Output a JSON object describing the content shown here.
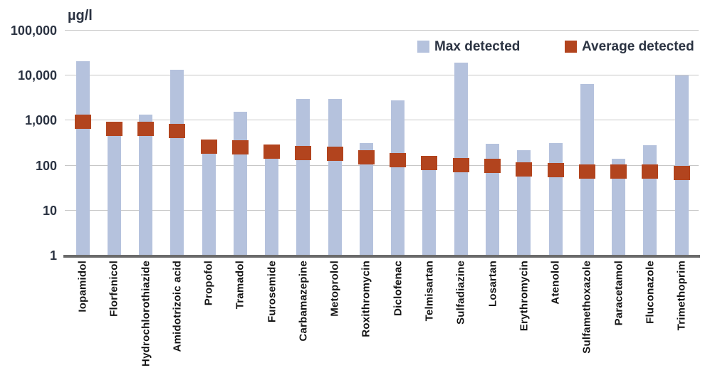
{
  "chart": {
    "unit_label": "µg/l",
    "legend": [
      {
        "label": "Max detected",
        "color": "#b5c2dd"
      },
      {
        "label": "Average detected",
        "color": "#b2441e"
      }
    ],
    "y_axis": {
      "tick_labels": [
        "100,000",
        "10,000",
        "1,000",
        "100",
        "10",
        "1"
      ],
      "tick_values": [
        100000,
        10000,
        1000,
        100,
        10,
        1
      ]
    }
  },
  "chart_data": {
    "type": "bar",
    "scale": "log",
    "unit": "µg/l",
    "title": "",
    "xlabel": "",
    "ylabel": "µg/l",
    "ylim": [
      1,
      100000
    ],
    "grid": true,
    "legend_position": "top-right",
    "categories": [
      "Iopamidol",
      "Florfenicol",
      "Hydrochlorothiazide",
      "Amidotrizoic acid",
      "Propofol",
      "Tramadol",
      "Furosemide",
      "Carbamazepine",
      "Metoprolol",
      "Roxithromycin",
      "Diclofenac",
      "Telmisartan",
      "Sulfadiazine",
      "Losartan",
      "Erythromycin",
      "Atenolol",
      "Sulfamethoxazole",
      "Paracetamol",
      "Fluconazole",
      "Trimethoprim"
    ],
    "series": [
      {
        "name": "Max detected",
        "color": "#b5c2dd",
        "values": [
          20000,
          900,
          1300,
          13000,
          350,
          1500,
          280,
          2900,
          2900,
          310,
          2700,
          160,
          19000,
          290,
          210,
          310,
          6300,
          135,
          270,
          9800
        ]
      },
      {
        "name": "Average detected",
        "color": "#b2441e",
        "values": [
          900,
          630,
          630,
          560,
          250,
          245,
          195,
          185,
          175,
          145,
          125,
          110,
          98,
          95,
          78,
          75,
          72,
          72,
          70,
          65
        ]
      }
    ]
  }
}
